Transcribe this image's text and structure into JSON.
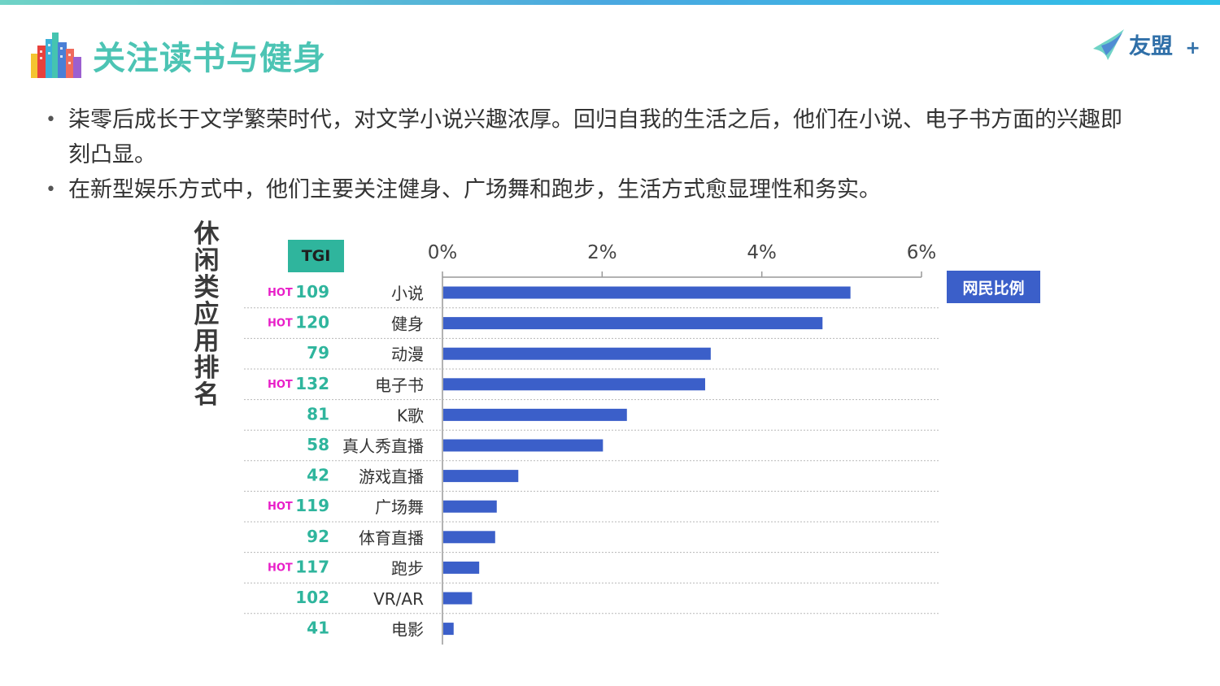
{
  "header": {
    "title": "关注读书与健身",
    "logo_text": "友盟",
    "logo_plus": "+"
  },
  "bullets": [
    "柒零后成长于文学繁荣时代，对文学小说兴趣浓厚。回归自我的生活之后，他们在小说、电子书方面的兴趣即刻凸显。",
    "在新型娱乐方式中，他们主要关注健身、广场舞和跑步，生活方式愈显理性和务实。"
  ],
  "side_label": "休闲类应用排名",
  "tgi_header": "TGI",
  "legend_label": "网民比例",
  "hot_label": "HOT",
  "colors": {
    "bar": "#3b5fc9",
    "tgi": "#2fb59d",
    "hot": "#e81ec8",
    "title": "#4cc4b4"
  },
  "chart_data": {
    "type": "bar",
    "orientation": "horizontal",
    "title": "",
    "series": [
      {
        "name": "网民比例",
        "values": [
          5.1,
          4.75,
          3.35,
          3.28,
          2.3,
          2.0,
          0.94,
          0.67,
          0.65,
          0.45,
          0.36,
          0.13
        ]
      }
    ],
    "categories": [
      "小说",
      "健身",
      "动漫",
      "电子书",
      "K歌",
      "真人秀直播",
      "游戏直播",
      "广场舞",
      "体育直播",
      "跑步",
      "VR/AR",
      "电影"
    ],
    "tgi": [
      109,
      120,
      79,
      132,
      81,
      58,
      42,
      119,
      92,
      117,
      102,
      41
    ],
    "hot": [
      true,
      true,
      false,
      true,
      false,
      false,
      false,
      true,
      false,
      true,
      false,
      false
    ],
    "x_ticks": [
      "0%",
      "2%",
      "4%",
      "6%"
    ],
    "xlim": [
      0,
      6
    ],
    "legend_position": "top-right"
  }
}
